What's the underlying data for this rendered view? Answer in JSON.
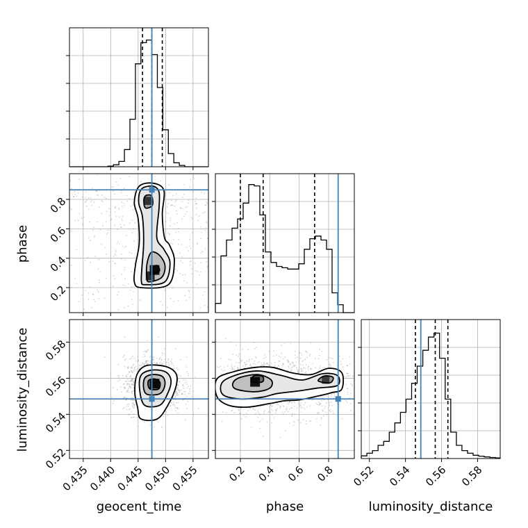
{
  "chart_data": {
    "type": "corner",
    "parameters": [
      "geocent_time",
      "phase",
      "luminosity_distance"
    ],
    "labels": {
      "geocent_time": "geocent_time",
      "phase": "phase",
      "luminosity_distance": "luminosity_distance"
    },
    "ranges": {
      "geocent_time": [
        0.4325,
        0.4578
      ],
      "phase": [
        0.03,
        0.975
      ],
      "luminosity_distance": [
        0.5155,
        0.5925
      ]
    },
    "ticks": {
      "geocent_time": [
        "0.435",
        "0.440",
        "0.445",
        "0.450",
        "0.455"
      ],
      "phase": [
        "0.2",
        "0.4",
        "0.6",
        "0.8"
      ],
      "luminosity_distance": [
        "0.52",
        "0.54",
        "0.56",
        "0.58"
      ]
    },
    "truths": {
      "geocent_time": 0.4475,
      "phase": 0.865,
      "luminosity_distance": 0.5485
    },
    "quantiles": {
      "geocent_time": [
        0.4458,
        0.4475,
        0.4494
      ],
      "phase": [
        0.2,
        0.355,
        0.705
      ],
      "luminosity_distance": [
        0.5455,
        0.5565,
        0.5635
      ]
    },
    "histograms": {
      "geocent_time": {
        "edges": [
          0.4325,
          0.4335,
          0.4345,
          0.4355,
          0.4365,
          0.4375,
          0.4385,
          0.4395,
          0.4405,
          0.4415,
          0.4425,
          0.4435,
          0.4445,
          0.4455,
          0.4465,
          0.4475,
          0.4485,
          0.4495,
          0.4505,
          0.4515,
          0.4525,
          0.4535,
          0.4545,
          0.4555,
          0.4565,
          0.4578
        ],
        "counts": [
          0,
          0,
          0,
          0,
          0,
          0,
          0,
          0.005,
          0.015,
          0.04,
          0.13,
          0.36,
          0.78,
          0.94,
          0.96,
          0.85,
          0.6,
          0.28,
          0.1,
          0.03,
          0.01,
          0,
          0,
          0,
          0
        ]
      },
      "phase": {
        "edges": [
          0.03,
          0.0678,
          0.1056,
          0.1434,
          0.1812,
          0.219,
          0.2568,
          0.2946,
          0.3324,
          0.3702,
          0.408,
          0.4458,
          0.4836,
          0.5214,
          0.5592,
          0.597,
          0.6348,
          0.6726,
          0.7104,
          0.7482,
          0.786,
          0.8238,
          0.8616,
          0.8994,
          0.9372,
          0.975
        ],
        "counts": [
          0.07,
          0.43,
          0.55,
          0.64,
          0.71,
          0.83,
          0.97,
          0.96,
          0.74,
          0.46,
          0.38,
          0.35,
          0.34,
          0.33,
          0.33,
          0.37,
          0.48,
          0.56,
          0.58,
          0.55,
          0.48,
          0.15,
          0.06,
          0,
          0
        ]
      },
      "luminosity_distance": {
        "edges": [
          0.5155,
          0.5186,
          0.5217,
          0.5248,
          0.5279,
          0.531,
          0.5341,
          0.5372,
          0.5403,
          0.5434,
          0.5465,
          0.5496,
          0.5527,
          0.5558,
          0.5589,
          0.562,
          0.5651,
          0.5682,
          0.5713,
          0.5744,
          0.5775,
          0.5806,
          0.5837,
          0.5868,
          0.5899,
          0.5925
        ],
        "counts": [
          0.02,
          0.04,
          0.06,
          0.1,
          0.13,
          0.2,
          0.27,
          0.35,
          0.45,
          0.57,
          0.7,
          0.82,
          0.92,
          0.95,
          0.76,
          0.45,
          0.2,
          0.1,
          0.06,
          0.04,
          0.025,
          0.018,
          0.012,
          0.008,
          0.004
        ]
      }
    },
    "contours": {
      "geocent_time|phase": {
        "levels": [
          [
            [
              0.4455,
              0.2
            ],
            [
              0.4505,
              0.22
            ],
            [
              0.4516,
              0.38
            ],
            [
              0.4507,
              0.49
            ],
            [
              0.4498,
              0.54
            ],
            [
              0.4494,
              0.7
            ],
            [
              0.4497,
              0.86
            ],
            [
              0.4478,
              0.91
            ],
            [
              0.4452,
              0.89
            ],
            [
              0.4443,
              0.78
            ],
            [
              0.445,
              0.67
            ],
            [
              0.4452,
              0.5
            ],
            [
              0.4445,
              0.35
            ],
            [
              0.4443,
              0.24
            ]
          ],
          [
            [
              0.4463,
              0.22
            ],
            [
              0.4499,
              0.24
            ],
            [
              0.4508,
              0.37
            ],
            [
              0.4497,
              0.46
            ],
            [
              0.4484,
              0.54
            ],
            [
              0.4488,
              0.74
            ],
            [
              0.4488,
              0.85
            ],
            [
              0.4477,
              0.89
            ],
            [
              0.4456,
              0.87
            ],
            [
              0.4451,
              0.78
            ],
            [
              0.4458,
              0.68
            ],
            [
              0.446,
              0.5
            ],
            [
              0.4457,
              0.34
            ],
            [
              0.4456,
              0.24
            ]
          ],
          [
            [
              0.447,
              0.24
            ],
            [
              0.4493,
              0.27
            ],
            [
              0.4499,
              0.35
            ],
            [
              0.4489,
              0.42
            ],
            [
              0.4474,
              0.44
            ],
            [
              0.4466,
              0.36
            ],
            [
              0.4466,
              0.27
            ]
          ],
          [
            [
              0.448,
              0.3
            ],
            [
              0.4489,
              0.315
            ],
            [
              0.4485,
              0.35
            ],
            [
              0.4477,
              0.34
            ],
            [
              0.4477,
              0.315
            ]
          ],
          [
            [
              0.4465,
              0.74
            ],
            [
              0.4476,
              0.76
            ],
            [
              0.4475,
              0.82
            ],
            [
              0.4467,
              0.83
            ],
            [
              0.4461,
              0.81
            ],
            [
              0.4461,
              0.76
            ]
          ]
        ]
      },
      "geocent_time|luminosity_distance": {
        "levels": [
          [
            [
              0.4455,
              0.5375
            ],
            [
              0.4485,
              0.5375
            ],
            [
              0.4505,
              0.5455
            ],
            [
              0.4519,
              0.5555
            ],
            [
              0.4519,
              0.5625
            ],
            [
              0.45,
              0.5665
            ],
            [
              0.4465,
              0.567
            ],
            [
              0.4448,
              0.562
            ],
            [
              0.4444,
              0.552
            ],
            [
              0.4449,
              0.544
            ]
          ],
          [
            [
              0.4462,
              0.545
            ],
            [
              0.4489,
              0.545
            ],
            [
              0.4503,
              0.551
            ],
            [
              0.451,
              0.5585
            ],
            [
              0.45,
              0.5635
            ],
            [
              0.4475,
              0.5645
            ],
            [
              0.4455,
              0.5615
            ],
            [
              0.4453,
              0.553
            ]
          ],
          [
            [
              0.4467,
              0.551
            ],
            [
              0.449,
              0.5515
            ],
            [
              0.4499,
              0.5565
            ],
            [
              0.4494,
              0.561
            ],
            [
              0.4475,
              0.562
            ],
            [
              0.4462,
              0.56
            ],
            [
              0.446,
              0.5545
            ]
          ],
          [
            [
              0.4472,
              0.554
            ],
            [
              0.4487,
              0.554
            ],
            [
              0.449,
              0.5575
            ],
            [
              0.4482,
              0.5595
            ],
            [
              0.447,
              0.559
            ],
            [
              0.4468,
              0.5565
            ]
          ]
        ]
      },
      "phase|luminosity_distance": {
        "levels": [
          [
            [
              0.04,
              0.55
            ],
            [
              0.12,
              0.545
            ],
            [
              0.25,
              0.544
            ],
            [
              0.4,
              0.546
            ],
            [
              0.5,
              0.5475
            ],
            [
              0.6,
              0.548
            ],
            [
              0.72,
              0.55
            ],
            [
              0.82,
              0.552
            ],
            [
              0.89,
              0.554
            ],
            [
              0.89,
              0.563
            ],
            [
              0.8,
              0.5655
            ],
            [
              0.68,
              0.562
            ],
            [
              0.55,
              0.563
            ],
            [
              0.42,
              0.566
            ],
            [
              0.3,
              0.566
            ],
            [
              0.15,
              0.5635
            ],
            [
              0.04,
              0.5595
            ]
          ],
          [
            [
              0.08,
              0.551
            ],
            [
              0.2,
              0.5485
            ],
            [
              0.35,
              0.5495
            ],
            [
              0.45,
              0.5515
            ],
            [
              0.6,
              0.553
            ],
            [
              0.72,
              0.5545
            ],
            [
              0.86,
              0.556
            ],
            [
              0.86,
              0.5615
            ],
            [
              0.76,
              0.5625
            ],
            [
              0.62,
              0.559
            ],
            [
              0.48,
              0.5615
            ],
            [
              0.33,
              0.564
            ],
            [
              0.2,
              0.5625
            ],
            [
              0.08,
              0.558
            ]
          ],
          [
            [
              0.17,
              0.554
            ],
            [
              0.3,
              0.5525
            ],
            [
              0.4,
              0.5545
            ],
            [
              0.41,
              0.559
            ],
            [
              0.32,
              0.562
            ],
            [
              0.2,
              0.5605
            ],
            [
              0.15,
              0.5575
            ]
          ],
          [
            [
              0.28,
              0.558
            ],
            [
              0.35,
              0.558
            ],
            [
              0.35,
              0.561
            ],
            [
              0.29,
              0.5612
            ]
          ],
          [
            [
              0.73,
              0.5585
            ],
            [
              0.81,
              0.5575
            ],
            [
              0.83,
              0.5605
            ],
            [
              0.77,
              0.5612
            ]
          ]
        ]
      }
    },
    "density_peaks": {
      "geocent_time|phase": [
        [
          0.448,
          0.32,
          1.0
        ],
        [
          0.4472,
          0.28,
          0.8
        ],
        [
          0.4468,
          0.79,
          0.6
        ]
      ],
      "geocent_time|luminosity_distance": [
        [
          0.448,
          0.557,
          1.0
        ]
      ],
      "phase|luminosity_distance": [
        [
          0.3,
          0.558,
          1.0
        ],
        [
          0.78,
          0.559,
          0.5
        ]
      ]
    },
    "scatter_spread": {
      "geocent_time|phase": {
        "main": [
          0.4478,
          0.03,
          0.42,
          0.3
        ],
        "secondary": [
          0.447,
          0.02,
          0.78,
          0.07
        ]
      },
      "geocent_time|luminosity_distance": {
        "main": [
          0.4477,
          0.0026,
          0.556,
          0.0075
        ]
      },
      "phase|luminosity_distance": {
        "main": [
          0.45,
          0.28,
          0.556,
          0.0085
        ]
      }
    },
    "grid": true,
    "colors": {
      "truth": "#4682b4",
      "line": "#000000",
      "grid": "#b0b0b0",
      "scatter": "#888888"
    }
  }
}
